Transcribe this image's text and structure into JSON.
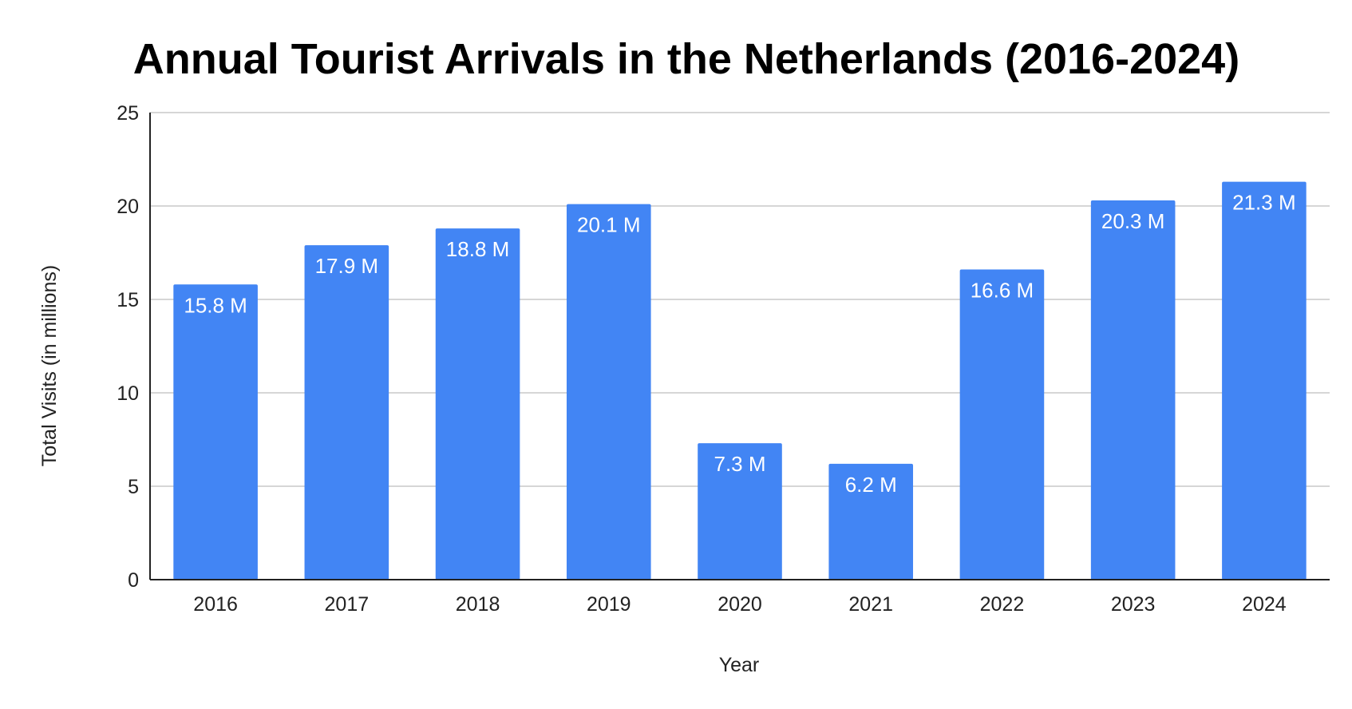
{
  "chart_data": {
    "type": "bar",
    "title": "Annual Tourist Arrivals in the Netherlands (2016-2024)",
    "xlabel": "Year",
    "ylabel": "Total Visits (in millions)",
    "categories": [
      "2016",
      "2017",
      "2018",
      "2019",
      "2020",
      "2021",
      "2022",
      "2023",
      "2024"
    ],
    "values": [
      15.8,
      17.9,
      18.8,
      20.1,
      7.3,
      6.2,
      16.6,
      20.3,
      21.3
    ],
    "data_labels": [
      "15.8 M",
      "17.9 M",
      "18.8 M",
      "20.1 M",
      "7.3 M",
      "6.2 M",
      "16.6 M",
      "20.3 M",
      "21.3 M"
    ],
    "yticks": [
      0,
      5,
      10,
      15,
      20,
      25
    ],
    "ylim": [
      0,
      25
    ],
    "grid": true,
    "legend": "none",
    "bar_color": "#4285F4"
  }
}
